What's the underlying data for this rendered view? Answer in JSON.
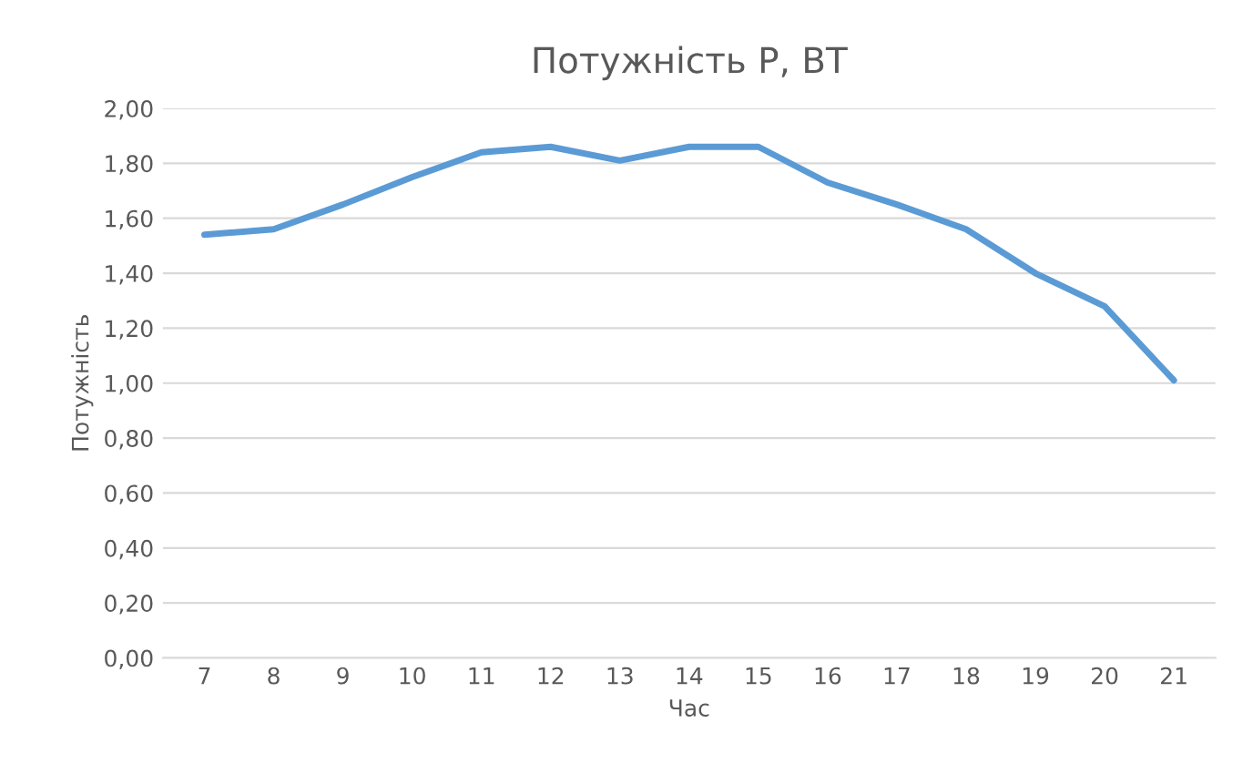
{
  "chart_data": {
    "type": "line",
    "title": "Потужність P, ВТ",
    "xlabel": "Час",
    "ylabel": "Потужність",
    "categories": [
      "7",
      "8",
      "9",
      "10",
      "11",
      "12",
      "13",
      "14",
      "15",
      "16",
      "17",
      "18",
      "19",
      "20",
      "21"
    ],
    "series": [
      {
        "color": "#5b9bd5",
        "values": [
          1.54,
          1.56,
          1.65,
          1.75,
          1.84,
          1.86,
          1.81,
          1.86,
          1.86,
          1.73,
          1.65,
          1.56,
          1.4,
          1.28,
          1.01
        ]
      }
    ],
    "ylim": [
      0,
      2
    ],
    "yticks": [
      {
        "value": 0,
        "label": "0,00"
      },
      {
        "value": 0.2,
        "label": "0,20"
      },
      {
        "value": 0.4,
        "label": "0,40"
      },
      {
        "value": 0.6,
        "label": "0,60"
      },
      {
        "value": 0.8,
        "label": "0,80"
      },
      {
        "value": 1.0,
        "label": "1,00"
      },
      {
        "value": 1.2,
        "label": "1,20"
      },
      {
        "value": 1.4,
        "label": "1,40"
      },
      {
        "value": 1.6,
        "label": "1,60"
      },
      {
        "value": 1.8,
        "label": "1,80"
      },
      {
        "value": 2.0,
        "label": "2,00"
      }
    ],
    "grid": "y",
    "marker": "none",
    "line_style": "solid"
  }
}
